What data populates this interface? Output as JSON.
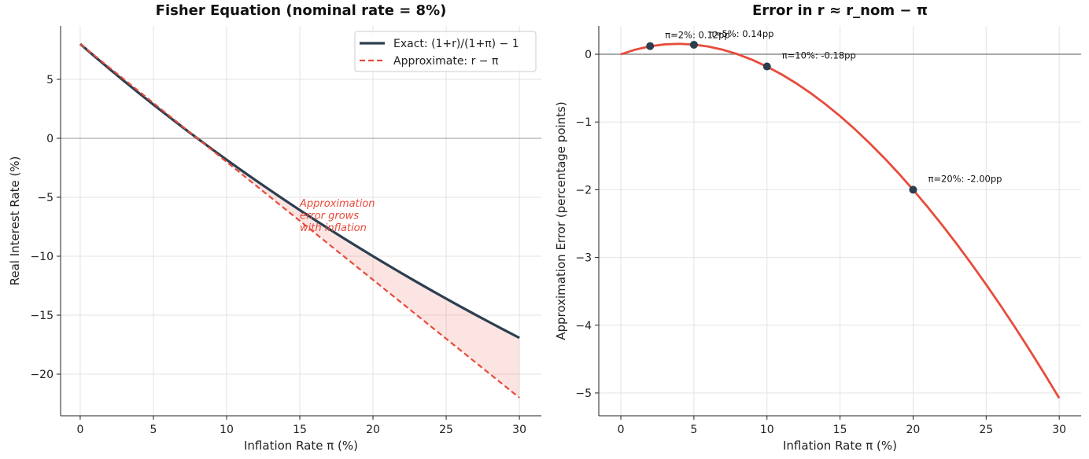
{
  "chart_data": [
    {
      "type": "line",
      "title": "Fisher Equation (nominal rate = 8%)",
      "xlabel": "Inflation Rate π (%)",
      "ylabel": "Real Interest Rate (%)",
      "xlim": [
        -1.34,
        31.5
      ],
      "ylim": [
        -23.53,
        9.53
      ],
      "xticks": [
        0,
        5,
        10,
        15,
        20,
        25,
        30
      ],
      "yticks": [
        5,
        0,
        -5,
        -10,
        -15,
        -20
      ],
      "ytick_labels": [
        "5",
        "0",
        "−5",
        "−10",
        "−15",
        "−20"
      ],
      "grid": true,
      "legend_position": "top-right",
      "x": [
        0,
        1,
        2,
        3,
        4,
        5,
        6,
        7,
        8,
        9,
        10,
        11,
        12,
        13,
        14,
        15,
        16,
        17,
        18,
        19,
        20,
        21,
        22,
        23,
        24,
        25,
        26,
        27,
        28,
        29,
        30
      ],
      "series": [
        {
          "name": "Exact: (1+r)/(1+π) − 1",
          "style": "solid",
          "color": "#2c3e50",
          "values": [
            8,
            6.931,
            5.882,
            4.854,
            3.846,
            2.857,
            1.887,
            0.935,
            0,
            -0.917,
            -1.818,
            -2.703,
            -3.571,
            -4.425,
            -5.263,
            -6.087,
            -6.897,
            -7.692,
            -8.475,
            -9.244,
            -10,
            -10.744,
            -11.475,
            -12.195,
            -12.903,
            -13.6,
            -14.286,
            -14.961,
            -15.625,
            -16.279,
            -16.923
          ]
        },
        {
          "name": "Approximate: r − π",
          "style": "dashed",
          "color": "#e74c3c",
          "values": [
            8,
            7,
            6,
            5,
            4,
            3,
            2,
            1,
            0,
            -1,
            -2,
            -3,
            -4,
            -5,
            -6,
            -7,
            -8,
            -9,
            -10,
            -11,
            -12,
            -13,
            -14,
            -15,
            -16,
            -17,
            -18,
            -19,
            -20,
            -21,
            -22
          ]
        }
      ],
      "fill_between": {
        "color": "#e74c3c",
        "opacity": 0.15,
        "from_x": 8
      },
      "hline": 0,
      "annotation": {
        "lines": [
          "Approximation",
          "error grows",
          "with inflation"
        ],
        "x": 15,
        "y": -5.8,
        "color": "#e74c3c"
      }
    },
    {
      "type": "line",
      "title": "Error in r ≈ r_nom − π",
      "xlabel": "Inflation Rate π (%)",
      "ylabel": "Approximation Error (percentage points)",
      "xlim": [
        -1.51,
        31.5
      ],
      "ylim": [
        -5.337,
        0.418
      ],
      "xticks": [
        0,
        5,
        10,
        15,
        20,
        25,
        30
      ],
      "yticks": [
        0,
        -1,
        -2,
        -3,
        -4,
        -5
      ],
      "ytick_labels": [
        "0",
        "−1",
        "−2",
        "−3",
        "−4",
        "−5"
      ],
      "grid": true,
      "x": [
        0,
        1,
        2,
        3,
        4,
        5,
        6,
        7,
        8,
        9,
        10,
        11,
        12,
        13,
        14,
        15,
        16,
        17,
        18,
        19,
        20,
        21,
        22,
        23,
        24,
        25,
        26,
        27,
        28,
        29,
        30
      ],
      "series": [
        {
          "color": "#e74c3c",
          "style": "solid",
          "values": [
            0,
            0.069,
            0.118,
            0.146,
            0.154,
            0.143,
            0.113,
            0.065,
            0,
            -0.083,
            -0.182,
            -0.297,
            -0.429,
            -0.575,
            -0.737,
            -0.913,
            -1.103,
            -1.308,
            -1.525,
            -1.756,
            -2,
            -2.256,
            -2.525,
            -2.805,
            -3.097,
            -3.4,
            -3.714,
            -4.039,
            -4.375,
            -4.721,
            -5.077
          ]
        }
      ],
      "hline": 0,
      "markers": [
        {
          "x": 2,
          "y": 0.12,
          "label": "π=2%: 0.12pp"
        },
        {
          "x": 5,
          "y": 0.14,
          "label": "π=5%: 0.14pp"
        },
        {
          "x": 10,
          "y": -0.18,
          "label": "π=10%: -0.18pp"
        },
        {
          "x": 20,
          "y": -2.0,
          "label": "π=20%: -2.00pp"
        }
      ],
      "marker_color": "#2c3e50"
    }
  ]
}
